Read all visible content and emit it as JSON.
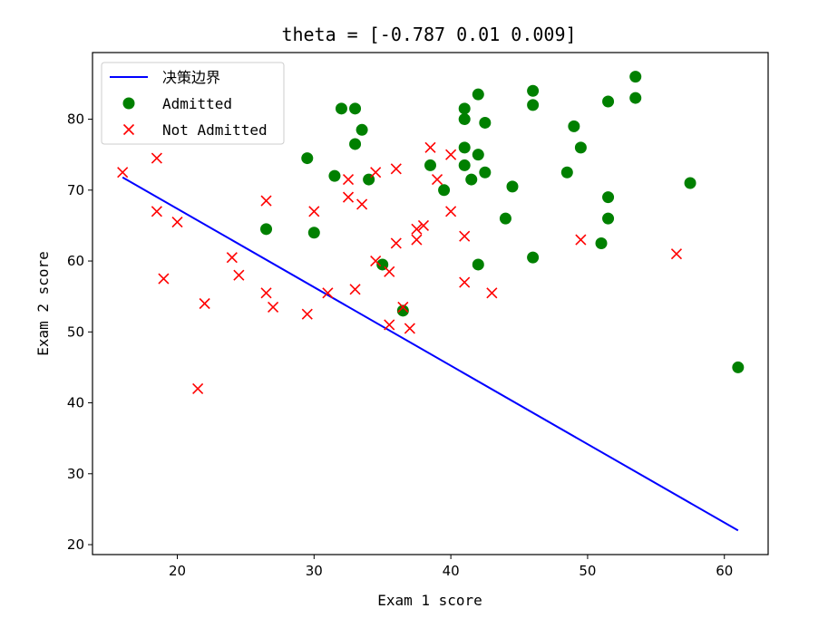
{
  "chart_data": {
    "type": "scatter",
    "title": "theta = [-0.787  0.01   0.009]",
    "xlabel": "Exam 1 score",
    "ylabel": "Exam 2 score",
    "xlim": [
      13.8,
      63.2
    ],
    "ylim": [
      18.6,
      89.4
    ],
    "xticks": [
      20,
      30,
      40,
      50,
      60
    ],
    "yticks": [
      20,
      30,
      40,
      50,
      60,
      70,
      80
    ],
    "grid": false,
    "legend_position": "top-left",
    "series": [
      {
        "name": "决策边界",
        "kind": "line",
        "color": "#0000ff",
        "points": [
          [
            16.0,
            71.8
          ],
          [
            61.0,
            22.0
          ]
        ]
      },
      {
        "name": "Admitted",
        "kind": "scatter",
        "marker": "circle",
        "color": "#008000",
        "points": [
          [
            32.0,
            81.5
          ],
          [
            33.0,
            81.5
          ],
          [
            33.5,
            78.5
          ],
          [
            33.0,
            76.5
          ],
          [
            29.5,
            74.5
          ],
          [
            31.5,
            72.0
          ],
          [
            34.0,
            71.5
          ],
          [
            26.5,
            64.5
          ],
          [
            30.0,
            64.0
          ],
          [
            35.0,
            59.5
          ],
          [
            36.5,
            53.0
          ],
          [
            38.5,
            73.5
          ],
          [
            39.5,
            70.0
          ],
          [
            41.0,
            81.5
          ],
          [
            41.0,
            80.0
          ],
          [
            42.0,
            83.5
          ],
          [
            42.5,
            79.5
          ],
          [
            41.0,
            76.0
          ],
          [
            42.0,
            75.0
          ],
          [
            41.0,
            73.5
          ],
          [
            41.5,
            71.5
          ],
          [
            42.5,
            72.5
          ],
          [
            44.0,
            66.0
          ],
          [
            44.5,
            70.5
          ],
          [
            42.0,
            59.5
          ],
          [
            46.0,
            84.0
          ],
          [
            46.0,
            82.0
          ],
          [
            46.0,
            60.5
          ],
          [
            48.5,
            72.5
          ],
          [
            49.0,
            79.0
          ],
          [
            49.5,
            76.0
          ],
          [
            51.5,
            82.5
          ],
          [
            51.5,
            69.0
          ],
          [
            51.5,
            66.0
          ],
          [
            51.0,
            62.5
          ],
          [
            53.5,
            86.0
          ],
          [
            53.5,
            83.0
          ],
          [
            57.5,
            71.0
          ],
          [
            61.0,
            45.0
          ]
        ]
      },
      {
        "name": "Not Admitted",
        "kind": "scatter",
        "marker": "x",
        "color": "#ff0000",
        "points": [
          [
            16.0,
            72.5
          ],
          [
            18.5,
            74.5
          ],
          [
            18.5,
            67.0
          ],
          [
            20.0,
            65.5
          ],
          [
            19.0,
            57.5
          ],
          [
            22.0,
            54.0
          ],
          [
            21.5,
            42.0
          ],
          [
            24.0,
            60.5
          ],
          [
            24.5,
            58.0
          ],
          [
            26.5,
            68.5
          ],
          [
            26.5,
            55.5
          ],
          [
            27.0,
            53.5
          ],
          [
            29.5,
            52.5
          ],
          [
            30.0,
            67.0
          ],
          [
            31.0,
            55.5
          ],
          [
            32.5,
            71.5
          ],
          [
            32.5,
            69.0
          ],
          [
            33.5,
            68.0
          ],
          [
            34.5,
            72.5
          ],
          [
            33.0,
            56.0
          ],
          [
            34.5,
            60.0
          ],
          [
            35.5,
            58.5
          ],
          [
            35.5,
            51.0
          ],
          [
            36.0,
            73.0
          ],
          [
            36.0,
            62.5
          ],
          [
            36.5,
            53.5
          ],
          [
            37.0,
            50.5
          ],
          [
            37.5,
            64.5
          ],
          [
            37.5,
            63.0
          ],
          [
            38.0,
            65.0
          ],
          [
            38.5,
            76.0
          ],
          [
            39.0,
            71.5
          ],
          [
            40.0,
            75.0
          ],
          [
            40.0,
            67.0
          ],
          [
            41.0,
            63.5
          ],
          [
            41.0,
            57.0
          ],
          [
            43.0,
            55.5
          ],
          [
            49.5,
            63.0
          ],
          [
            56.5,
            61.0
          ]
        ]
      }
    ]
  }
}
